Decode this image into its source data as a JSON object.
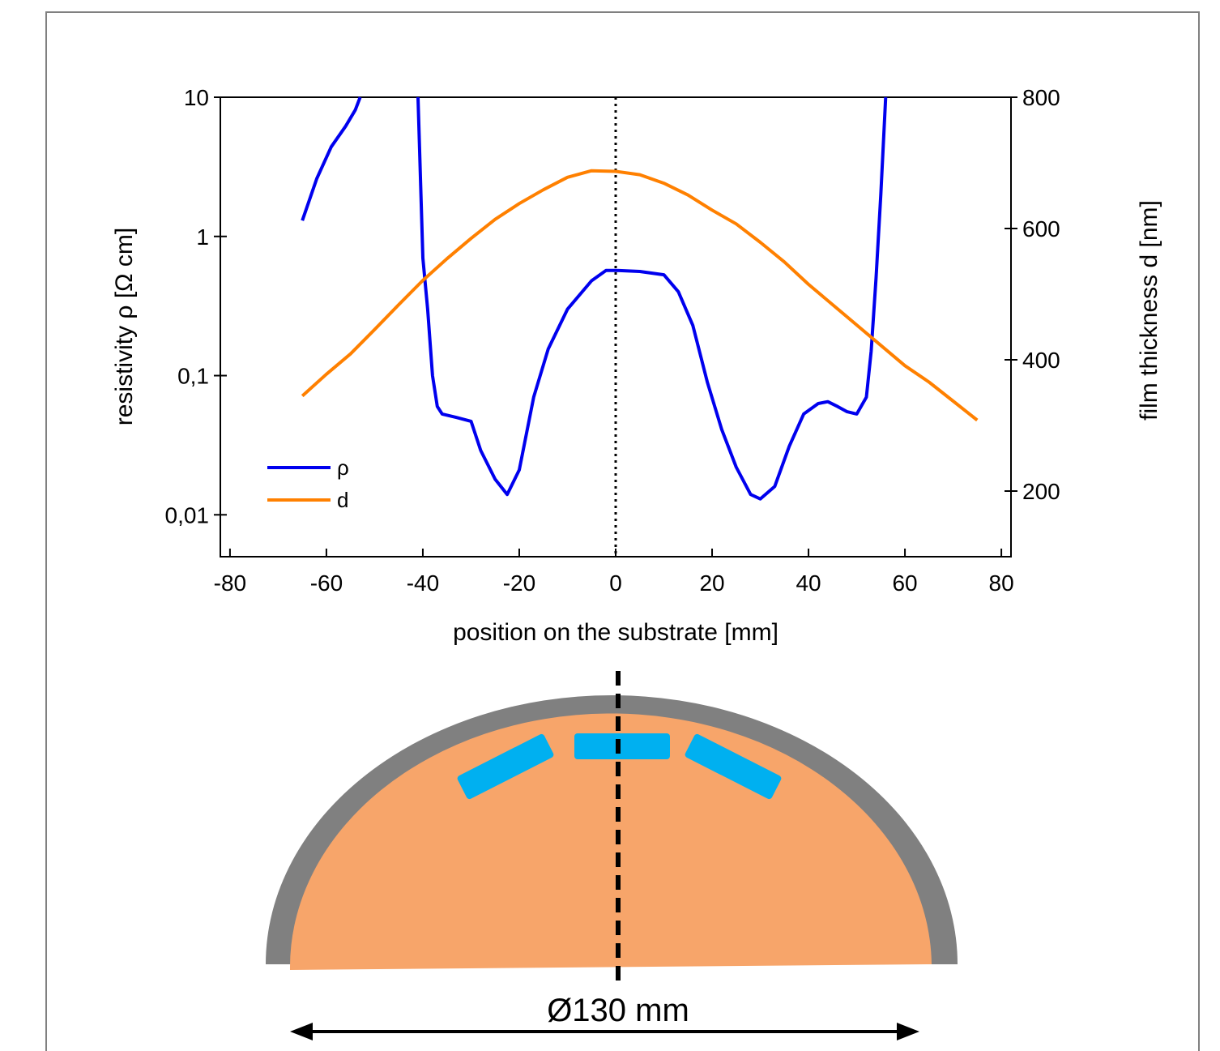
{
  "chart_data": {
    "type": "line",
    "xlabel": "position on the substrate [mm]",
    "ylabel": "resistivity ρ [Ω cm]",
    "y2label": "film thickness d [nm]",
    "xlim": [
      -82,
      82
    ],
    "xticks": [
      -80,
      -60,
      -40,
      -20,
      0,
      20,
      40,
      60,
      80
    ],
    "ylim": [
      0.005,
      10
    ],
    "ylog": true,
    "yticks": [
      {
        "value": 0.01,
        "label": "0,01"
      },
      {
        "value": 0.1,
        "label": "0,1"
      },
      1,
      10
    ],
    "y2lim": [
      100,
      800
    ],
    "y2ticks": [
      200,
      400,
      600,
      800
    ],
    "vline": 0,
    "legend": "lower left",
    "series": [
      {
        "name": "ρ",
        "color": "#0000ee",
        "x": [
          -65,
          -62,
          -59,
          -56,
          -54,
          -53,
          -47,
          -41,
          -40,
          -39,
          -38,
          -37,
          -36,
          -33,
          -30,
          -28,
          -25,
          -22.5,
          -20,
          -17,
          -14,
          -10,
          -5,
          -2,
          0,
          5,
          10,
          13,
          16,
          19,
          22,
          25,
          28,
          30,
          33,
          36,
          39,
          42,
          44,
          46,
          48,
          50,
          52,
          53,
          54,
          55,
          56
        ],
        "values": [
          1.3,
          2.6,
          4.4,
          6.2,
          8.1,
          10,
          null,
          10,
          0.7,
          0.3,
          0.1,
          0.06,
          0.053,
          0.05,
          0.047,
          0.029,
          0.018,
          0.014,
          0.021,
          0.07,
          0.155,
          0.3,
          0.48,
          0.57,
          0.57,
          0.56,
          0.53,
          0.4,
          0.23,
          0.09,
          0.041,
          0.022,
          0.014,
          0.013,
          0.016,
          0.031,
          0.053,
          0.063,
          0.065,
          0.06,
          0.055,
          0.053,
          0.07,
          0.15,
          0.5,
          2,
          10
        ]
      },
      {
        "name": "d",
        "color": "#ff8000",
        "axis": "y2",
        "x": [
          -65,
          -60,
          -55,
          -50,
          -45,
          -40,
          -35,
          -30,
          -25,
          -20,
          -15,
          -10,
          -5,
          0,
          5,
          10,
          15,
          20,
          25,
          30,
          35,
          40,
          45,
          50,
          55,
          60,
          65,
          70,
          75
        ],
        "values": [
          345,
          378,
          409,
          446,
          484,
          521,
          554,
          585,
          614,
          638,
          659,
          678,
          688,
          687,
          682,
          669,
          651,
          628,
          607,
          579,
          549,
          515,
          484,
          453,
          422,
          391,
          366,
          337,
          308
        ]
      }
    ]
  },
  "diagram": {
    "label": "Ø130 mm"
  }
}
